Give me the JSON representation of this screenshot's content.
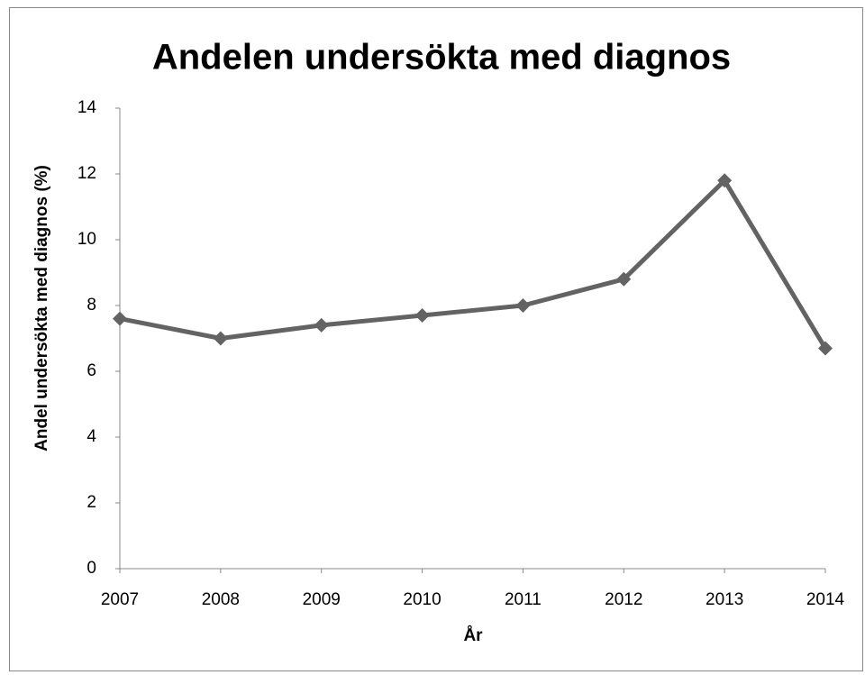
{
  "chart_data": {
    "type": "line",
    "title": "Andelen undersökta med diagnos",
    "xlabel": "År",
    "ylabel": "Andel undersökta med diagnos (%)",
    "categories": [
      "2007",
      "2008",
      "2009",
      "2010",
      "2011",
      "2012",
      "2013",
      "2014"
    ],
    "series": [
      {
        "color": "#636363",
        "values": [
          7.6,
          7.0,
          7.4,
          7.7,
          8.0,
          8.8,
          11.8,
          6.7
        ]
      }
    ],
    "ylim": [
      0,
      14
    ],
    "yticks": [
      0,
      2,
      4,
      6,
      8,
      10,
      12,
      14
    ],
    "grid": false
  }
}
